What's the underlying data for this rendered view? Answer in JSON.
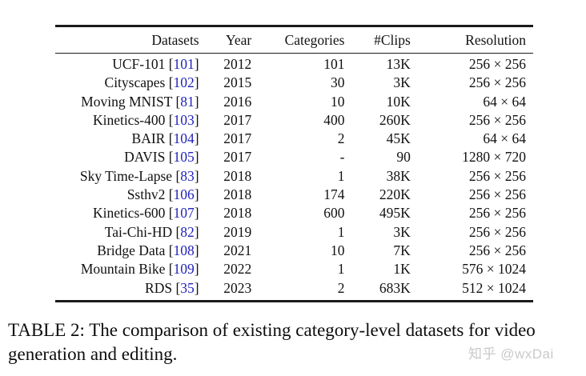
{
  "colors": {
    "background": "#ffffff",
    "text": "#111111",
    "rule": "#1b1b1b",
    "citation_link": "#2222bb",
    "watermark": "#c9c9c9"
  },
  "table": {
    "columns": [
      "Datasets",
      "Year",
      "Categories",
      "#Clips",
      "Resolution"
    ],
    "rows": [
      {
        "dataset": "UCF-101",
        "cite": "101",
        "year": "2012",
        "categories": "101",
        "clips": "13K",
        "resolution": "256 × 256"
      },
      {
        "dataset": "Cityscapes",
        "cite": "102",
        "year": "2015",
        "categories": "30",
        "clips": "3K",
        "resolution": "256 × 256"
      },
      {
        "dataset": "Moving MNIST",
        "cite": "81",
        "year": "2016",
        "categories": "10",
        "clips": "10K",
        "resolution": "64 × 64"
      },
      {
        "dataset": "Kinetics-400",
        "cite": "103",
        "year": "2017",
        "categories": "400",
        "clips": "260K",
        "resolution": "256 × 256"
      },
      {
        "dataset": "BAIR",
        "cite": "104",
        "year": "2017",
        "categories": "2",
        "clips": "45K",
        "resolution": "64 × 64"
      },
      {
        "dataset": "DAVIS",
        "cite": "105",
        "year": "2017",
        "categories": "-",
        "clips": "90",
        "resolution": "1280 × 720"
      },
      {
        "dataset": "Sky Time-Lapse",
        "cite": "83",
        "year": "2018",
        "categories": "1",
        "clips": "38K",
        "resolution": "256 × 256"
      },
      {
        "dataset": "Ssthv2",
        "cite": "106",
        "year": "2018",
        "categories": "174",
        "clips": "220K",
        "resolution": "256 × 256"
      },
      {
        "dataset": "Kinetics-600",
        "cite": "107",
        "year": "2018",
        "categories": "600",
        "clips": "495K",
        "resolution": "256 × 256"
      },
      {
        "dataset": "Tai-Chi-HD",
        "cite": "82",
        "year": "2019",
        "categories": "1",
        "clips": "3K",
        "resolution": "256 × 256"
      },
      {
        "dataset": "Bridge Data",
        "cite": "108",
        "year": "2021",
        "categories": "10",
        "clips": "7K",
        "resolution": "256 × 256"
      },
      {
        "dataset": "Mountain Bike",
        "cite": "109",
        "year": "2022",
        "categories": "1",
        "clips": "1K",
        "resolution": "576 × 1024"
      },
      {
        "dataset": "RDS",
        "cite": "35",
        "year": "2023",
        "categories": "2",
        "clips": "683K",
        "resolution": "512 × 1024"
      }
    ]
  },
  "caption": "TABLE 2: The comparison of existing category-level datasets for video generation and editing.",
  "watermark": "知乎 @wxDai"
}
